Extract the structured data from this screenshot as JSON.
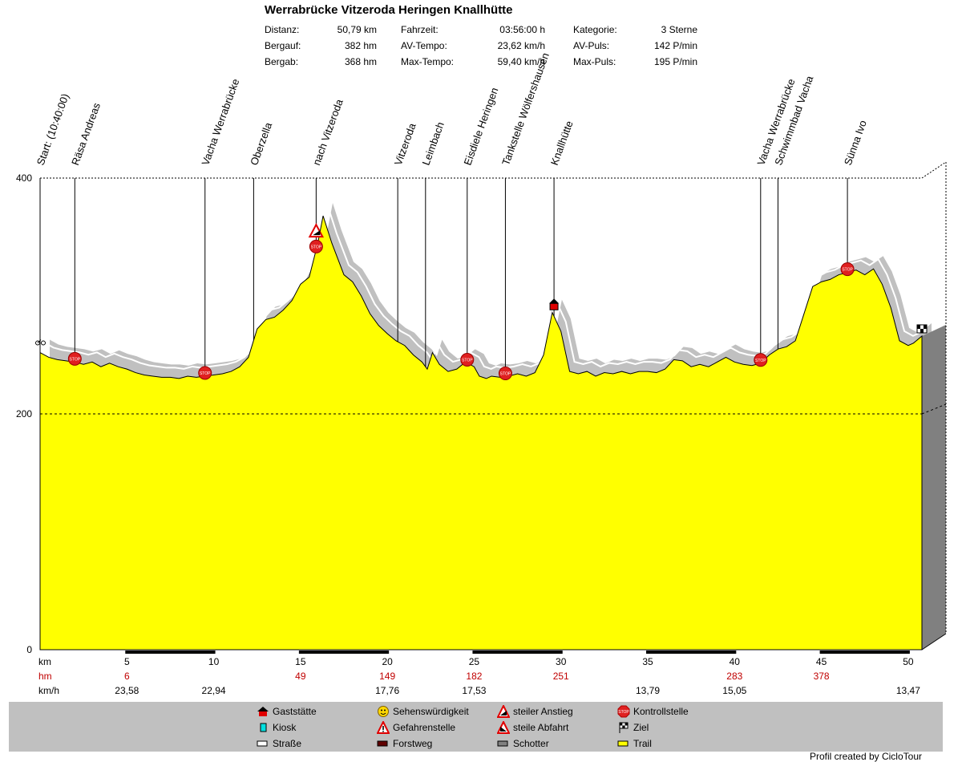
{
  "title": "Werrabrücke Vitzeroda Heringen Knallhütte",
  "stats": [
    {
      "label": "Distanz:",
      "value": "50,79 km"
    },
    {
      "label": "Bergauf:",
      "value": "382 hm"
    },
    {
      "label": "Bergab:",
      "value": "368 hm"
    },
    {
      "label": "Fahrzeit:",
      "value": "03:56:00 h"
    },
    {
      "label": "AV-Tempo:",
      "value": "23,62 km/h"
    },
    {
      "label": "Max-Tempo:",
      "value": "59,40 km/h"
    },
    {
      "label": "Kategorie:",
      "value": "3 Sterne"
    },
    {
      "label": "AV-Puls:",
      "value": "142 P/min"
    },
    {
      "label": "Max-Puls:",
      "value": "195 P/min"
    }
  ],
  "chart_data": {
    "type": "area",
    "ylim": [
      0,
      400
    ],
    "xlim": [
      0,
      50.79
    ],
    "y_ticks": [
      "0",
      "200",
      "400"
    ],
    "x_unit_label": "km",
    "hm_label": "hm",
    "kmh_label": "km/h",
    "x_tick_labels": [
      "5",
      "10",
      "15",
      "20",
      "25",
      "30",
      "35",
      "40",
      "45",
      "50"
    ],
    "x_ticks": [
      5,
      10,
      15,
      20,
      25,
      30,
      35,
      40,
      45,
      50
    ],
    "hm_values": [
      "6",
      "49",
      "149",
      "182",
      "251",
      "283",
      "378"
    ],
    "hm_positions": [
      5,
      15,
      20,
      25,
      30,
      40,
      45
    ],
    "kmh_values": [
      "23,58",
      "22,94",
      "17,76",
      "17,53",
      "13,79",
      "15,05",
      "13,47"
    ],
    "kmh_positions": [
      5,
      10,
      20,
      25,
      35,
      40,
      50
    ],
    "profile": [
      [
        0,
        252
      ],
      [
        0.5,
        248
      ],
      [
        1,
        246
      ],
      [
        1.5,
        245
      ],
      [
        2,
        244
      ],
      [
        2.5,
        242
      ],
      [
        3,
        244
      ],
      [
        3.5,
        240
      ],
      [
        4,
        243
      ],
      [
        4.5,
        240
      ],
      [
        5,
        238
      ],
      [
        5.5,
        235
      ],
      [
        6,
        233
      ],
      [
        6.5,
        232
      ],
      [
        7,
        231
      ],
      [
        7.5,
        231
      ],
      [
        8,
        230
      ],
      [
        8.5,
        232
      ],
      [
        9,
        231
      ],
      [
        9.5,
        232
      ],
      [
        10,
        233
      ],
      [
        10.5,
        234
      ],
      [
        11,
        236
      ],
      [
        11.5,
        240
      ],
      [
        12,
        248
      ],
      [
        12.5,
        272
      ],
      [
        13,
        280
      ],
      [
        13.5,
        282
      ],
      [
        14,
        288
      ],
      [
        14.5,
        296
      ],
      [
        15,
        310
      ],
      [
        15.5,
        316
      ],
      [
        16,
        345
      ],
      [
        16.3,
        368
      ],
      [
        16.8,
        345
      ],
      [
        17.5,
        318
      ],
      [
        18,
        312
      ],
      [
        18.5,
        300
      ],
      [
        19,
        285
      ],
      [
        19.5,
        275
      ],
      [
        20,
        268
      ],
      [
        20.5,
        262
      ],
      [
        21,
        258
      ],
      [
        21.5,
        250
      ],
      [
        22,
        244
      ],
      [
        22.3,
        238
      ],
      [
        22.6,
        252
      ],
      [
        23,
        242
      ],
      [
        23.5,
        236
      ],
      [
        24,
        238
      ],
      [
        24.5,
        244
      ],
      [
        25,
        240
      ],
      [
        25.3,
        232
      ],
      [
        25.7,
        230
      ],
      [
        26,
        232
      ],
      [
        26.5,
        231
      ],
      [
        27,
        232
      ],
      [
        27.5,
        234
      ],
      [
        28,
        232
      ],
      [
        28.5,
        235
      ],
      [
        29,
        250
      ],
      [
        29.5,
        286
      ],
      [
        30,
        270
      ],
      [
        30.5,
        236
      ],
      [
        31,
        234
      ],
      [
        31.5,
        236
      ],
      [
        32,
        232
      ],
      [
        32.5,
        235
      ],
      [
        33,
        234
      ],
      [
        33.5,
        236
      ],
      [
        34,
        234
      ],
      [
        34.5,
        236
      ],
      [
        35,
        236
      ],
      [
        35.5,
        235
      ],
      [
        36,
        238
      ],
      [
        36.5,
        246
      ],
      [
        37,
        245
      ],
      [
        37.5,
        240
      ],
      [
        38,
        242
      ],
      [
        38.5,
        240
      ],
      [
        39,
        244
      ],
      [
        39.5,
        248
      ],
      [
        40,
        244
      ],
      [
        40.5,
        242
      ],
      [
        41,
        241
      ],
      [
        41.5,
        243
      ],
      [
        42,
        250
      ],
      [
        42.5,
        255
      ],
      [
        43,
        257
      ],
      [
        43.5,
        262
      ],
      [
        44,
        285
      ],
      [
        44.5,
        308
      ],
      [
        45,
        312
      ],
      [
        45.5,
        314
      ],
      [
        46,
        318
      ],
      [
        46.5,
        320
      ],
      [
        47,
        322
      ],
      [
        47.5,
        318
      ],
      [
        48,
        323
      ],
      [
        48.5,
        310
      ],
      [
        49,
        290
      ],
      [
        49.5,
        262
      ],
      [
        50,
        258
      ],
      [
        50.3,
        260
      ],
      [
        50.79,
        266
      ]
    ],
    "waypoints": [
      {
        "km": 0,
        "label": "Start: (10:40:00)",
        "icon": "bike"
      },
      {
        "km": 2,
        "label": "Räsa Andreas",
        "icon": "stop"
      },
      {
        "km": 9.5,
        "label": "Vacha Werrabrücke",
        "icon": "stop"
      },
      {
        "km": 12.3,
        "label": "Oberzella",
        "icon": "none"
      },
      {
        "km": 15.9,
        "label": "nach Vitzeroda",
        "icon": "stop"
      },
      {
        "km": 20.6,
        "label": "Vitzeroda",
        "icon": "none"
      },
      {
        "km": 22.2,
        "label": "Leimbach",
        "icon": "none"
      },
      {
        "km": 24.6,
        "label": "Eisdiele Heringen",
        "icon": "stop"
      },
      {
        "km": 26.8,
        "label": "Tankstelle Wölfershausen",
        "icon": "stop"
      },
      {
        "km": 29.6,
        "label": "Knallhütte",
        "icon": "gast"
      },
      {
        "km": 41.5,
        "label": "Vacha Werrabrücke",
        "icon": "stop"
      },
      {
        "km": 42.5,
        "label": "Schwimmbad Vacha",
        "icon": "none"
      },
      {
        "km": 46.5,
        "label": "Sünna Ivo",
        "icon": "stop"
      },
      {
        "km": 50.79,
        "label": "",
        "icon": "flag"
      }
    ],
    "extra_icons": [
      {
        "km": 15.9,
        "elev": 355,
        "icon": "steep"
      }
    ]
  },
  "legend": [
    {
      "label": "Gaststätte",
      "icon": "gast-icon"
    },
    {
      "label": "Sehenswürdigkeit",
      "icon": "smiley-icon"
    },
    {
      "label": "steiler Anstieg",
      "icon": "steep-up-icon"
    },
    {
      "label": "Kontrollstelle",
      "icon": "stop-icon"
    },
    {
      "label": "Kiosk",
      "icon": "kiosk-icon"
    },
    {
      "label": "Gefahrenstelle",
      "icon": "danger-icon"
    },
    {
      "label": "steile Abfahrt",
      "icon": "steep-down-icon"
    },
    {
      "label": "Ziel",
      "icon": "finish-flag-icon"
    },
    {
      "label": "Straße",
      "icon": "road-swatch"
    },
    {
      "label": "Forstweg",
      "icon": "forest-swatch"
    },
    {
      "label": "Schotter",
      "icon": "gravel-swatch"
    },
    {
      "label": "Trail",
      "icon": "trail-swatch"
    }
  ],
  "footer": "Profil created by CicloTour",
  "colors": {
    "fill": "#ffff00",
    "shadow": "#c0c0c0",
    "side": "#808080",
    "hm": "#c00000",
    "stop": "#e02020"
  }
}
